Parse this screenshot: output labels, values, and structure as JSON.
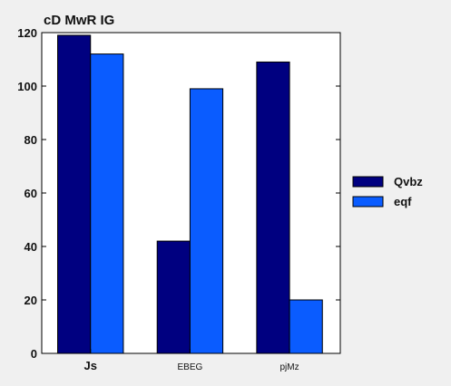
{
  "chart_data": {
    "type": "bar",
    "title": "cD MwR  IG",
    "xlabel": "",
    "ylabel": "",
    "categories": [
      "Js",
      "EBEG",
      "pjMz"
    ],
    "series": [
      {
        "name": "Qvbz",
        "color": "#000080",
        "values": [
          119,
          42,
          109
        ]
      },
      {
        "name": "eqf",
        "color": "#0a5cff",
        "values": [
          112,
          99,
          20
        ]
      }
    ],
    "ylim": [
      0,
      120
    ],
    "yticks": [
      0,
      20,
      40,
      60,
      80,
      100,
      120
    ],
    "grid": false,
    "legend_position": "right"
  }
}
